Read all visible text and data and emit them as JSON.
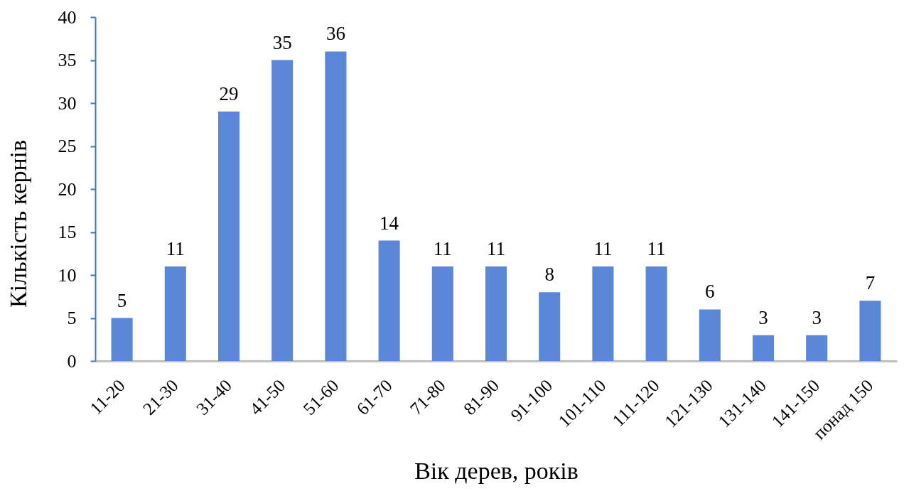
{
  "chart_data": {
    "type": "bar",
    "xlabel": "Вік дерев, років",
    "ylabel": "Кількість кернів",
    "categories": [
      "11-20",
      "21-30",
      "31-40",
      "41-50",
      "51-60",
      "61-70",
      "71-80",
      "81-90",
      "91-100",
      "101-110",
      "111-120",
      "121-130",
      "131-140",
      "141-150",
      "понад 150"
    ],
    "values": [
      5,
      11,
      29,
      35,
      36,
      14,
      11,
      11,
      8,
      11,
      11,
      6,
      3,
      3,
      7
    ],
    "color": "#5a87d8",
    "ylim": [
      0,
      40
    ],
    "yticks": [
      0,
      5,
      10,
      15,
      20,
      25,
      30,
      35,
      40
    ],
    "data_labels": true,
    "grid": false
  }
}
